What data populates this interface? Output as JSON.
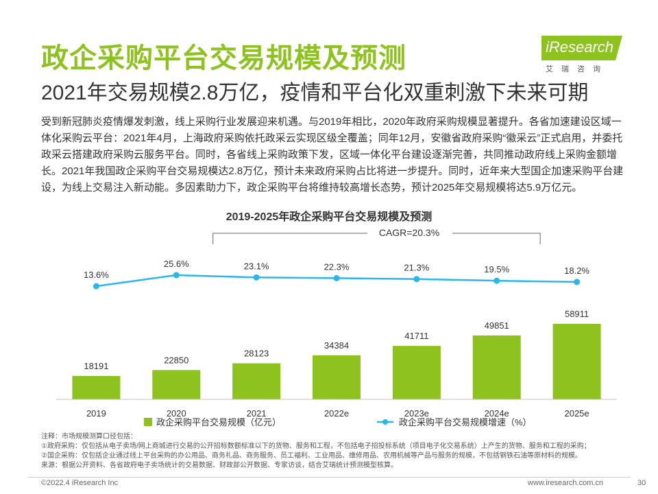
{
  "header": {
    "title": "政企采购平台交易规模及预测",
    "subtitle": "2021年交易规模2.8万亿，疫情和平台化双重刺激下未来可期"
  },
  "logo": {
    "brand": "iResearch",
    "cn": "艾瑞咨询"
  },
  "intro": "受到新冠肺炎疫情爆发刺激，线上采购行业发展迎来机遇。与2019年相比，2020年政府采购规模显著提升。各省加速建设区域一体化采购云平台：2021年4月，上海政府采购依托政采云实现区级全覆盖；同年12月，安徽省政府采购“徽采云”正式启用，并委托政采云搭建政府采购云服务平台。同时，各省线上采购政策下发，区域一体化平台建设逐渐完善，共同推动政府线上采购金额增长。2021年我国政企采购平台交易规模达2.8万亿，预计未来政府采购占比将进一步提升。同时，近年来大型国企加速采购平台建设，为线上交易注入新动能。多因素助力下，政企采购平台将维持较高增长态势，预计2025年交易规模将达5.9万亿元。",
  "chart_data": {
    "type": "bar+line",
    "title": "2019-2025年政企采购平台交易规模及预测",
    "annotation": "CAGR=20.3%",
    "categories": [
      "2019",
      "2020",
      "2021",
      "2022e",
      "2023e",
      "2024e",
      "2025e"
    ],
    "series": [
      {
        "name": "政企采购平台交易规模（亿元）",
        "type": "bar",
        "values": [
          18191,
          22850,
          28123,
          34384,
          41711,
          49851,
          58911
        ],
        "labels": [
          "18191",
          "22850",
          "28123",
          "34384",
          "41711",
          "49851",
          "58911"
        ],
        "color": "#8dc21f"
      },
      {
        "name": "政企采购平台交易规模增速（%）",
        "type": "line",
        "values": [
          13.6,
          25.6,
          23.1,
          22.3,
          21.3,
          19.5,
          18.2
        ],
        "labels": [
          "13.6%",
          "25.6%",
          "23.1%",
          "22.3%",
          "21.3%",
          "19.5%",
          "18.2%"
        ],
        "color": "#29b6e8"
      }
    ],
    "legend_position": "bottom",
    "grid": false
  },
  "notes": [
    "注释：市场规模测算口径包括：",
    "①政府采购：仅包括从电子卖场/网上商城进行交易的公开招标数额标准以下的货物、服务和工程，不包括电子招投标系统（项目电子化交易系统）上产生的货物、服务和工程的采购；",
    "②国企采购：仅包括企业通过线上平台采购的办公用品、商务礼品、商务服务、员工福利、工业用品、维修用品、农用机械等产品与服务的规模，不包括钢铁石油等原材料的规模。",
    "来源：根据公开资料、各省政府电子卖场统计的交易数据、财政部公开数据、专家访谈，结合艾瑞统计预测模型核算。"
  ],
  "footer": {
    "copyright": "©2022.4 iResearch Inc",
    "website": "www.iresearch.com.cn",
    "page": "30"
  }
}
